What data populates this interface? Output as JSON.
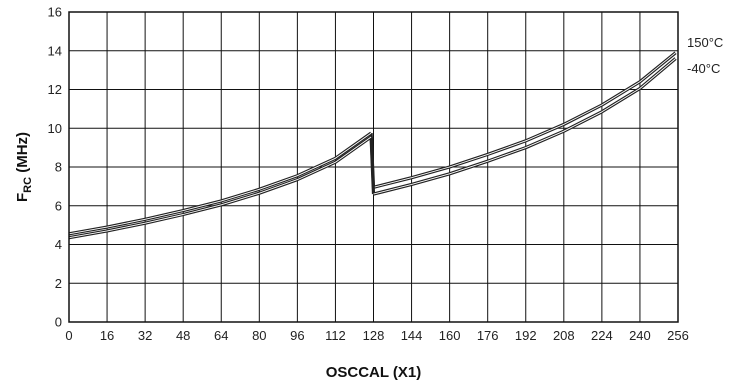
{
  "chart_data": {
    "type": "line",
    "title": "",
    "xlabel": "OSCCAL (X1)",
    "ylabel_main": "F",
    "ylabel_sub": "RC",
    "ylabel_unit": " (MHz)",
    "xlim": [
      0,
      256
    ],
    "ylim": [
      0,
      16
    ],
    "xticks": [
      0,
      16,
      32,
      48,
      64,
      80,
      96,
      112,
      128,
      144,
      160,
      176,
      192,
      208,
      224,
      240,
      256
    ],
    "yticks": [
      0,
      2,
      4,
      6,
      8,
      10,
      12,
      14,
      16
    ],
    "grid": true,
    "legend": "right-end labels",
    "series": [
      {
        "name": "150°C",
        "color": "#222222",
        "x": [
          0,
          16,
          32,
          48,
          64,
          80,
          96,
          112,
          127,
          128,
          144,
          160,
          176,
          192,
          208,
          224,
          240,
          255
        ],
        "y": [
          4.55,
          4.9,
          5.3,
          5.75,
          6.25,
          6.85,
          7.55,
          8.45,
          9.75,
          6.95,
          7.45,
          8.0,
          8.65,
          9.35,
          10.2,
          11.2,
          12.4,
          13.9
        ]
      },
      {
        "name": "-40°C",
        "color": "#222222",
        "x": [
          0,
          16,
          32,
          48,
          64,
          80,
          96,
          112,
          127,
          128,
          144,
          160,
          176,
          192,
          208,
          224,
          240,
          255
        ],
        "y": [
          4.35,
          4.7,
          5.1,
          5.55,
          6.05,
          6.65,
          7.35,
          8.25,
          9.55,
          6.6,
          7.1,
          7.65,
          8.3,
          9.0,
          9.85,
          10.85,
          12.05,
          13.6
        ]
      }
    ]
  }
}
